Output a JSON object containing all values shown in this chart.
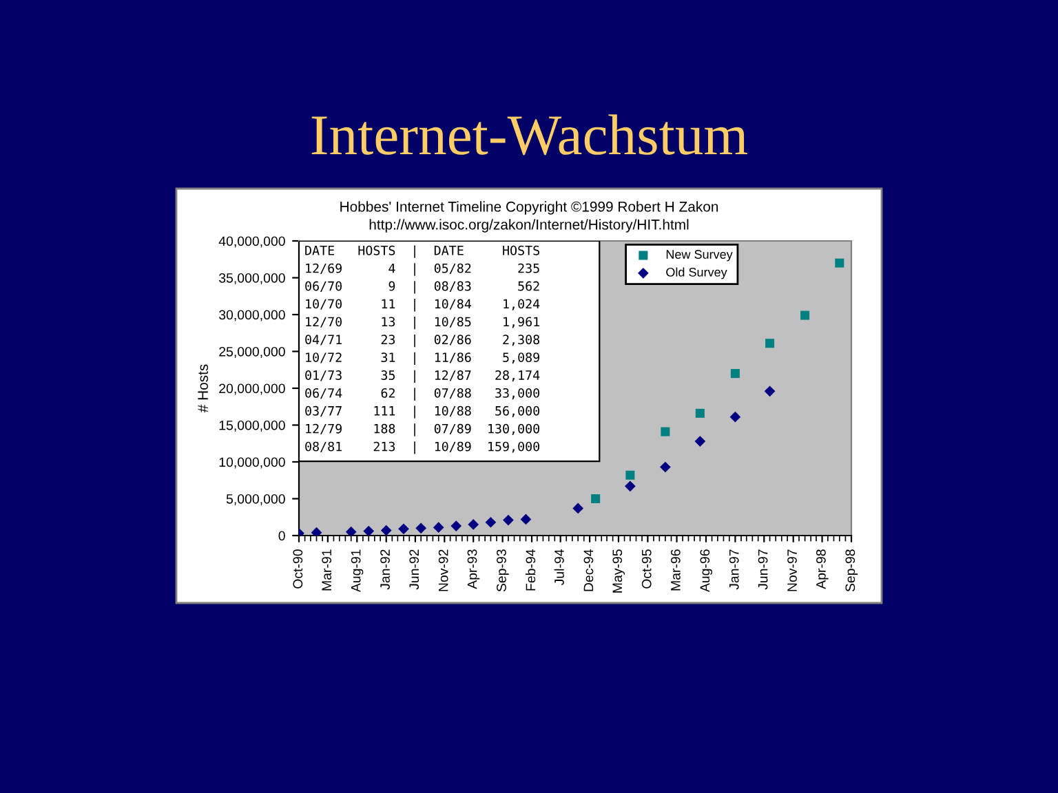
{
  "chart_data": {
    "type": "scatter",
    "title": "Internet-Wachstum",
    "subtitle": "Hobbes' Internet Timeline Copyright ©1999 Robert H Zakon",
    "ylabel": "# Hosts",
    "annotations": [
      "http://www.isoc.org/zakon/Internet/History/HIT.html",
      "DATE   HOSTS  |  DATE     HOSTS",
      "12/69      4  |  05/82      235",
      "06/70      9  |  08/83      562",
      "10/70     11  |  10/84    1,024",
      "12/70     13  |  10/85    1,961",
      "04/71     23  |  02/86    2,308",
      "10/72     31  |  11/86    5,089",
      "01/73     35  |  12/87   28,174",
      "06/74     62  |  07/88   33,000",
      "03/77    111  |  10/88   56,000",
      "12/79    188  |  07/89  130,000",
      "08/81    213  |  10/89  159,000"
    ],
    "series": [
      {
        "name": "New Survey",
        "color": "#008080",
        "marker": "square",
        "x": [
          "1995-01",
          "1995-07",
          "1996-01",
          "1996-07",
          "1997-01",
          "1997-07",
          "1998-01",
          "1998-07"
        ],
        "values": [
          5000000,
          8200000,
          14100000,
          16600000,
          22000000,
          26100000,
          29900000,
          37000000
        ]
      },
      {
        "name": "Old Survey",
        "color": "#000080",
        "marker": "diamond",
        "x": [
          "1990-10",
          "1991-01",
          "1991-07",
          "1991-10",
          "1992-01",
          "1992-04",
          "1992-07",
          "1992-10",
          "1993-01",
          "1993-04",
          "1993-07",
          "1993-10",
          "1994-01",
          "1994-10",
          "1995-07",
          "1996-01",
          "1996-07",
          "1997-01",
          "1997-07"
        ],
        "values": [
          300000,
          400000,
          500000,
          600000,
          700000,
          900000,
          1000000,
          1100000,
          1300000,
          1500000,
          1800000,
          2100000,
          2200000,
          3700000,
          6700000,
          9300000,
          12800000,
          16100000,
          19600000
        ]
      }
    ],
    "xlim": [
      "1990-10",
      "1998-09"
    ],
    "xticks": [
      {
        "value": "1990-10",
        "label": "Oct-90"
      },
      {
        "value": "1991-03",
        "label": "Mar-91"
      },
      {
        "value": "1991-08",
        "label": "Aug-91"
      },
      {
        "value": "1992-01",
        "label": "Jan-92"
      },
      {
        "value": "1992-06",
        "label": "Jun-92"
      },
      {
        "value": "1992-11",
        "label": "Nov-92"
      },
      {
        "value": "1993-04",
        "label": "Apr-93"
      },
      {
        "value": "1993-09",
        "label": "Sep-93"
      },
      {
        "value": "1994-02",
        "label": "Feb-94"
      },
      {
        "value": "1994-07",
        "label": "Jul-94"
      },
      {
        "value": "1994-12",
        "label": "Dec-94"
      },
      {
        "value": "1995-05",
        "label": "May-95"
      },
      {
        "value": "1995-10",
        "label": "Oct-95"
      },
      {
        "value": "1996-03",
        "label": "Mar-96"
      },
      {
        "value": "1996-08",
        "label": "Aug-96"
      },
      {
        "value": "1997-01",
        "label": "Jan-97"
      },
      {
        "value": "1997-06",
        "label": "Jun-97"
      },
      {
        "value": "1997-11",
        "label": "Nov-97"
      },
      {
        "value": "1998-04",
        "label": "Apr-98"
      },
      {
        "value": "1998-09",
        "label": "Sep-98"
      }
    ],
    "ylim": [
      0,
      40000000
    ],
    "yticks": [
      0,
      {
        "value": 5000000,
        "label": "5,000,000"
      },
      {
        "value": 10000000,
        "label": "10,000,000"
      },
      {
        "value": 15000000,
        "label": "15,000,000"
      },
      {
        "value": 20000000,
        "label": "20,000,000"
      },
      {
        "value": 25000000,
        "label": "25,000,000"
      },
      {
        "value": 30000000,
        "label": "30,000,000"
      },
      {
        "value": 35000000,
        "label": "35,000,000"
      },
      {
        "value": 40000000,
        "label": "40,000,000"
      }
    ],
    "grid": false,
    "legend": "top"
  }
}
